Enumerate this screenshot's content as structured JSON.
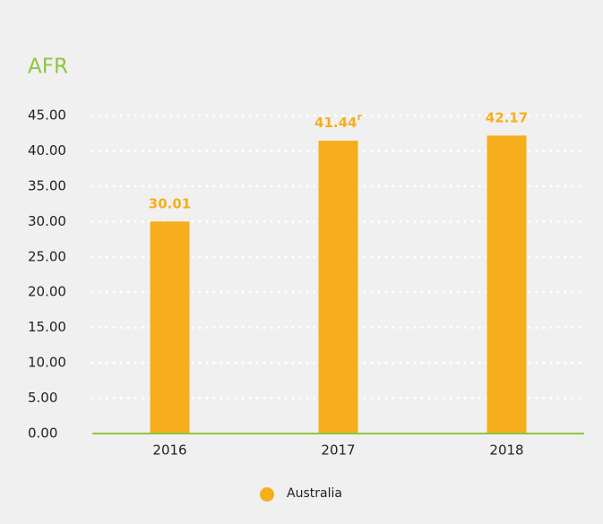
{
  "chart_data": {
    "type": "bar",
    "title": "AFR",
    "categories": [
      "2016",
      "2017",
      "2018"
    ],
    "series": [
      {
        "name": "Australia",
        "color": "#f6ae1c",
        "values": [
          30.01,
          41.44,
          42.17
        ]
      }
    ],
    "value_notes": [
      null,
      "r",
      null
    ],
    "ylim": [
      0,
      45
    ],
    "yticks": [
      {
        "value": 0,
        "label": "0.00"
      },
      {
        "value": 5,
        "label": "5.00"
      },
      {
        "value": 10,
        "label": "10.00"
      },
      {
        "value": 15,
        "label": "15.00"
      },
      {
        "value": 20,
        "label": "20.00"
      },
      {
        "value": 25,
        "label": "25.00"
      },
      {
        "value": 30,
        "label": "30.00"
      },
      {
        "value": 35,
        "label": "35.00"
      },
      {
        "value": 40,
        "label": "40.00"
      },
      {
        "value": 45,
        "label": "45.00"
      }
    ],
    "grid": true,
    "legend": "bottom"
  }
}
